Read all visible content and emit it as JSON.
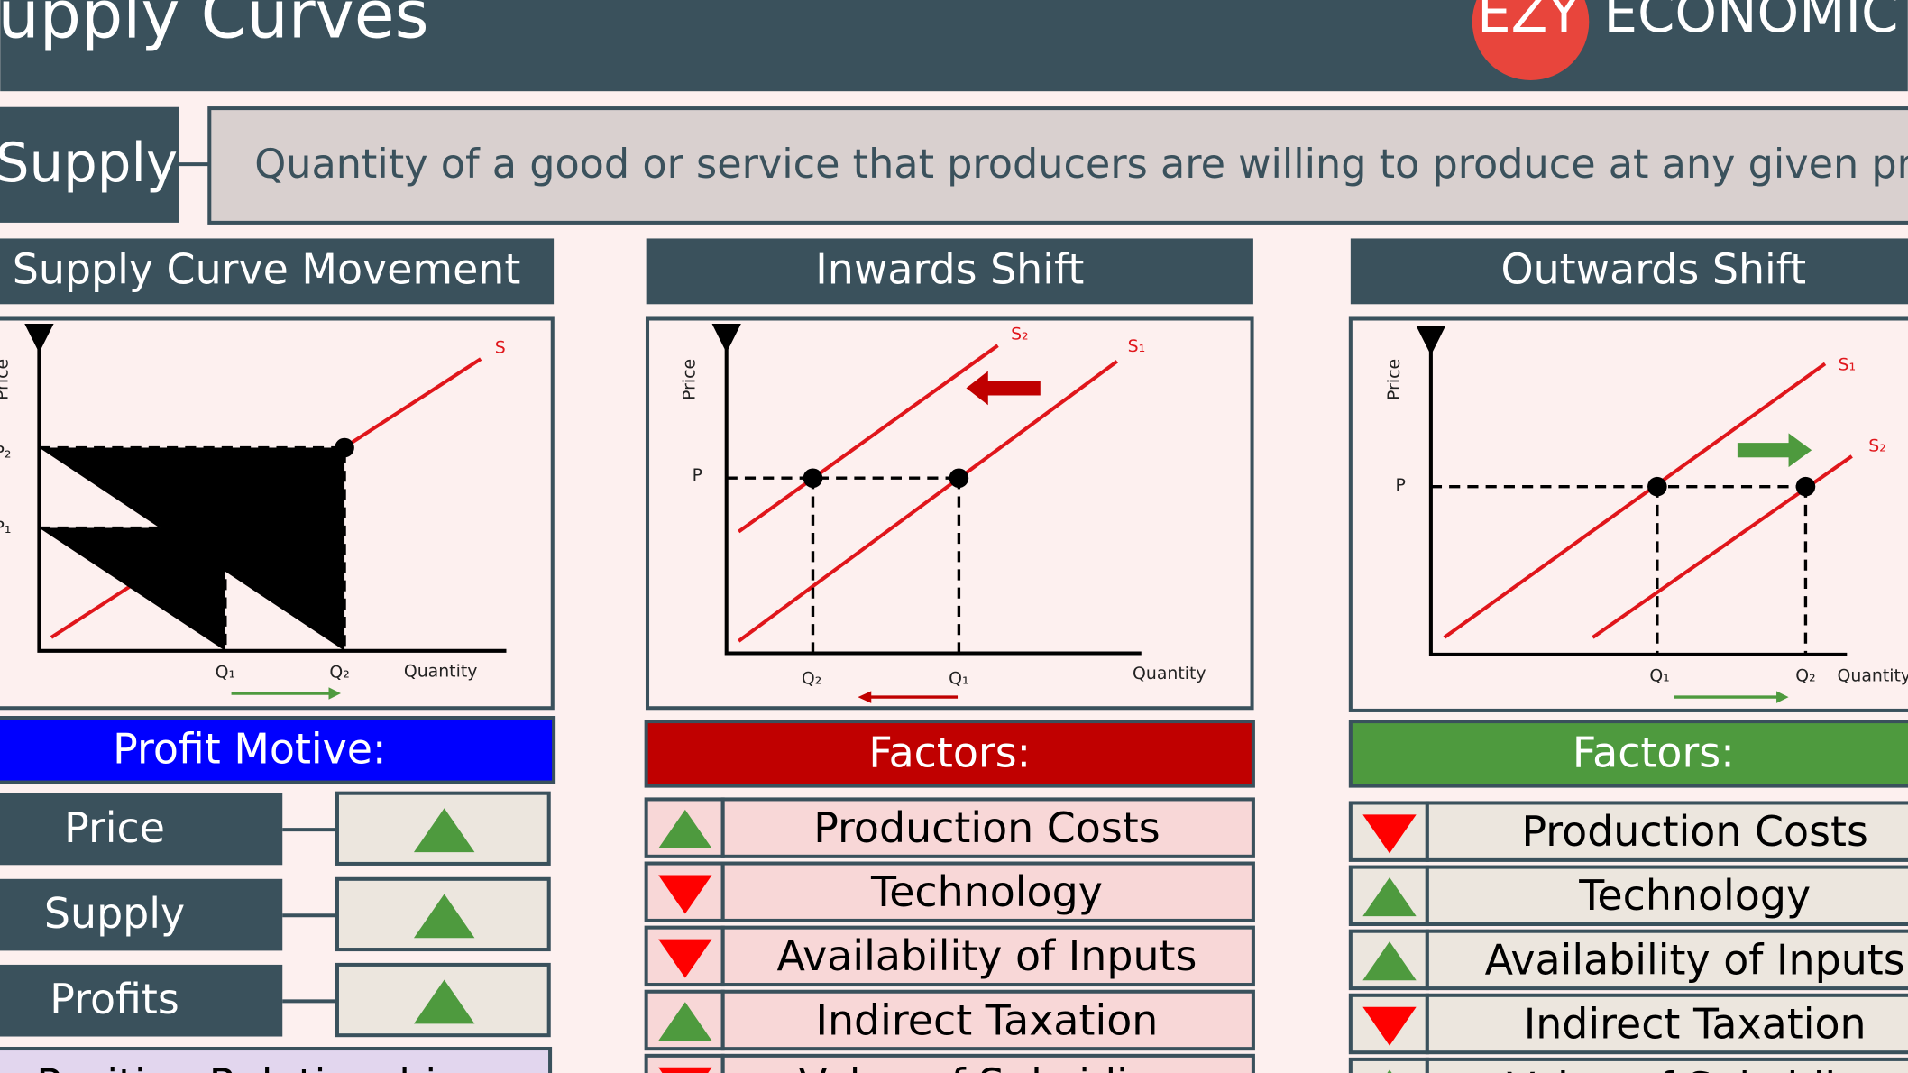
{
  "header": {
    "title": "upply Curves",
    "logo_mark": "EZY",
    "logo_text": "ECONOMIC"
  },
  "definition": {
    "term": "Supply",
    "text": "Quantity of a good or service that producers are willing to produce at any given price."
  },
  "panels": [
    {
      "title": "Supply Curve Movement",
      "diagram": {
        "y_label": "Price",
        "curves": [
          "S"
        ],
        "price_labels": [
          "P₂",
          "P₁"
        ],
        "quantity_labels": [
          "Q₁",
          "Q₂"
        ],
        "x_label": "Quantity"
      },
      "list_title": "Profit Motive:",
      "list_color": "#0000ff",
      "items": [
        {
          "label": "Price",
          "trend": "up"
        },
        {
          "label": "Supply",
          "trend": "up"
        },
        {
          "label": "Profits",
          "trend": "up"
        }
      ]
    },
    {
      "title": "Inwards Shift",
      "diagram": {
        "y_label": "Price",
        "curves": [
          "S₂",
          "S₁"
        ],
        "price_labels": [
          "P"
        ],
        "quantity_labels": [
          "Q₂",
          "Q₁"
        ],
        "x_label": "Quantity"
      },
      "list_title": "Factors:",
      "list_color": "#c00000",
      "items": [
        {
          "label": "Production Costs",
          "trend": "up"
        },
        {
          "label": "Technology",
          "trend": "down"
        },
        {
          "label": "Availability of Inputs",
          "trend": "down"
        },
        {
          "label": "Indirect Taxation",
          "trend": "up"
        },
        {
          "label": "Value of Subsidies",
          "trend": "down"
        }
      ]
    },
    {
      "title": "Outwards Shift",
      "diagram": {
        "y_label": "Price",
        "curves": [
          "S₁",
          "S₂"
        ],
        "price_labels": [
          "P"
        ],
        "quantity_labels": [
          "Q₁",
          "Q₂"
        ],
        "x_label": "Quantity"
      },
      "list_title": "Factors:",
      "list_color": "#4e9a3e",
      "items": [
        {
          "label": "Production Costs",
          "trend": "down"
        },
        {
          "label": "Technology",
          "trend": "up"
        },
        {
          "label": "Availability of Inputs",
          "trend": "up"
        },
        {
          "label": "Indirect Taxation",
          "trend": "down"
        },
        {
          "label": "Value of Subsidies",
          "trend": "up"
        }
      ]
    }
  ],
  "footer_partial": "Positive Relationship"
}
